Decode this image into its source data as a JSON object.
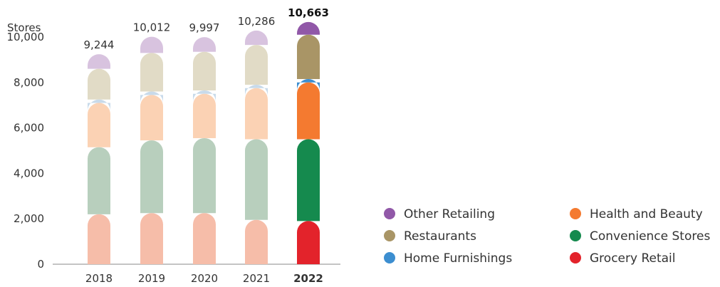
{
  "chart_data": {
    "type": "bar",
    "stacked": true,
    "title": "",
    "ylabel": "Stores",
    "xlabel": "",
    "ylim": [
      0,
      10663
    ],
    "yticks": [
      0,
      2000,
      4000,
      6000,
      8000,
      10000
    ],
    "yticklabels": [
      "0",
      "2,000",
      "4,000",
      "6,000",
      "8,000",
      "10,000"
    ],
    "categories": [
      "2018",
      "2019",
      "2020",
      "2021",
      "2022"
    ],
    "highlight_category": "2022",
    "totals": [
      9244,
      10012,
      9997,
      10286,
      10663
    ],
    "total_labels": [
      "9,244",
      "10,012",
      "9,997",
      "10,286",
      "10,663"
    ],
    "legend_position": "bottom-right",
    "series": [
      {
        "name": "Grocery Retail",
        "color": "#e3232b",
        "faded_color": "#f6bda9",
        "values": [
          2200,
          2250,
          2250,
          1950,
          1900
        ]
      },
      {
        "name": "Convenience Stores",
        "color": "#158a4e",
        "faded_color": "#b8cfbd",
        "values": [
          2950,
          3200,
          3300,
          3550,
          3600
        ]
      },
      {
        "name": "Health and Beauty",
        "color": "#f47a30",
        "faded_color": "#fbd2b4",
        "values": [
          1950,
          2000,
          1950,
          2250,
          2500
        ]
      },
      {
        "name": "Home Furnishings",
        "color": "#3c8ed0",
        "faded_color": "#c8daea",
        "values": [
          150,
          150,
          150,
          150,
          150
        ]
      },
      {
        "name": "Restaurants",
        "color": "#a99566",
        "faded_color": "#e1dbc6",
        "values": [
          1350,
          1700,
          1700,
          1750,
          1950
        ]
      },
      {
        "name": "Other Retailing",
        "color": "#9158a8",
        "faded_color": "#d8c3df",
        "values": [
          644,
          712,
          647,
          636,
          563
        ]
      }
    ],
    "legend_order": [
      "Other Retailing",
      "Health and Beauty",
      "Restaurants",
      "Convenience Stores",
      "Home Furnishings",
      "Grocery Retail"
    ]
  }
}
